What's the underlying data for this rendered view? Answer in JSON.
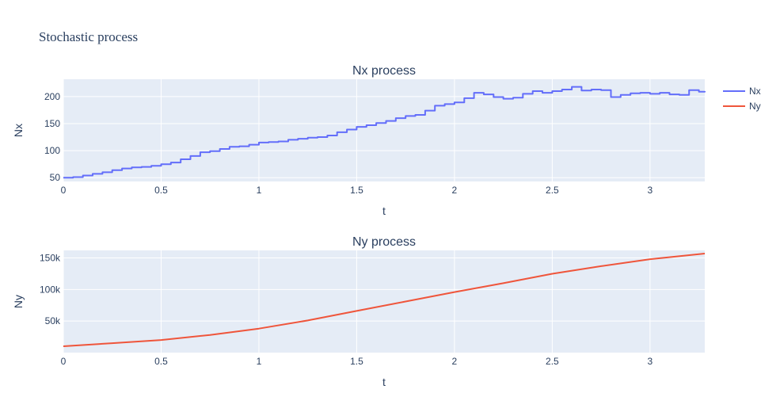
{
  "title": "Stochastic process",
  "colors": {
    "plot_bg": "#e5ecf6",
    "grid": "#ffffff",
    "nx": "#636efa",
    "ny": "#ef553b",
    "text": "#2a3f5f"
  },
  "legend": {
    "placement": "top-right",
    "items": [
      "Nx",
      "Ny"
    ]
  },
  "chart_data": [
    {
      "type": "line",
      "title": "Nx process",
      "xlabel": "t",
      "ylabel": "Nx",
      "xlim": [
        0,
        3.28
      ],
      "ylim": [
        43,
        232
      ],
      "grid": true,
      "xticks": [
        0,
        0.5,
        1,
        1.5,
        2,
        2.5,
        3
      ],
      "xtick_labels": [
        "0",
        "0.5",
        "1",
        "1.5",
        "2",
        "2.5",
        "3"
      ],
      "yticks": [
        50,
        100,
        150,
        200
      ],
      "ytick_labels": [
        "50",
        "100",
        "150",
        "200"
      ],
      "series": [
        {
          "name": "Nx",
          "x": [
            0,
            0.05,
            0.1,
            0.15,
            0.2,
            0.25,
            0.3,
            0.35,
            0.4,
            0.45,
            0.5,
            0.55,
            0.6,
            0.65,
            0.7,
            0.75,
            0.8,
            0.85,
            0.9,
            0.95,
            1.0,
            1.05,
            1.1,
            1.15,
            1.2,
            1.25,
            1.3,
            1.35,
            1.4,
            1.45,
            1.5,
            1.55,
            1.6,
            1.65,
            1.7,
            1.75,
            1.8,
            1.85,
            1.9,
            1.95,
            2.0,
            2.05,
            2.1,
            2.15,
            2.2,
            2.25,
            2.3,
            2.35,
            2.4,
            2.45,
            2.5,
            2.55,
            2.6,
            2.65,
            2.7,
            2.75,
            2.8,
            2.85,
            2.9,
            2.95,
            3.0,
            3.05,
            3.1,
            3.15,
            3.2,
            3.25,
            3.28
          ],
          "y": [
            50,
            51,
            54,
            57,
            60,
            64,
            67,
            69,
            70,
            72,
            75,
            78,
            84,
            90,
            97,
            99,
            103,
            107,
            108,
            111,
            115,
            116,
            117,
            120,
            122,
            124,
            125,
            128,
            134,
            139,
            144,
            147,
            151,
            155,
            160,
            164,
            166,
            174,
            183,
            186,
            189,
            197,
            207,
            204,
            199,
            196,
            198,
            205,
            210,
            207,
            210,
            213,
            218,
            211,
            213,
            212,
            199,
            203,
            206,
            207,
            205,
            207,
            204,
            203,
            212,
            209,
            210
          ]
        }
      ]
    },
    {
      "type": "line",
      "title": "Ny process",
      "xlabel": "t",
      "ylabel": "Ny",
      "xlim": [
        0,
        3.28
      ],
      "ylim": [
        0,
        162000
      ],
      "grid": true,
      "xticks": [
        0,
        0.5,
        1,
        1.5,
        2,
        2.5,
        3
      ],
      "xtick_labels": [
        "0",
        "0.5",
        "1",
        "1.5",
        "2",
        "2.5",
        "3"
      ],
      "yticks": [
        50000,
        100000,
        150000
      ],
      "ytick_labels": [
        "50k",
        "100k",
        "150k"
      ],
      "series": [
        {
          "name": "Ny",
          "x": [
            0,
            0.25,
            0.5,
            0.75,
            1.0,
            1.25,
            1.5,
            1.75,
            2.0,
            2.25,
            2.5,
            2.75,
            3.0,
            3.28
          ],
          "y": [
            10000,
            15000,
            20000,
            28000,
            38000,
            51000,
            66000,
            81000,
            96000,
            110000,
            125000,
            137000,
            148000,
            157000
          ]
        }
      ]
    }
  ]
}
